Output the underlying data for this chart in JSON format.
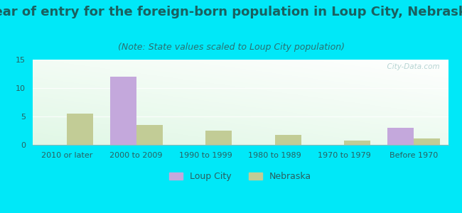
{
  "title": "Year of entry for the foreign-born population in Loup City, Nebraska",
  "subtitle": "(Note: State values scaled to Loup City population)",
  "categories": [
    "2010 or later",
    "2000 to 2009",
    "1990 to 1999",
    "1980 to 1989",
    "1970 to 1979",
    "Before 1970"
  ],
  "loup_city": [
    0,
    12,
    0,
    0,
    0,
    3
  ],
  "nebraska": [
    5.5,
    3.5,
    2.5,
    1.7,
    0.7,
    1.1
  ],
  "loup_city_color": "#c4a8dc",
  "nebraska_color": "#c2cc96",
  "ylim": [
    0,
    15
  ],
  "yticks": [
    0,
    5,
    10,
    15
  ],
  "bar_width": 0.38,
  "background_outer": "#00e8f8",
  "title_color": "#1a6060",
  "subtitle_color": "#2a7070",
  "tick_color": "#2a6060",
  "watermark": "  City-Data.com",
  "title_fontsize": 13,
  "subtitle_fontsize": 9,
  "tick_fontsize": 8
}
